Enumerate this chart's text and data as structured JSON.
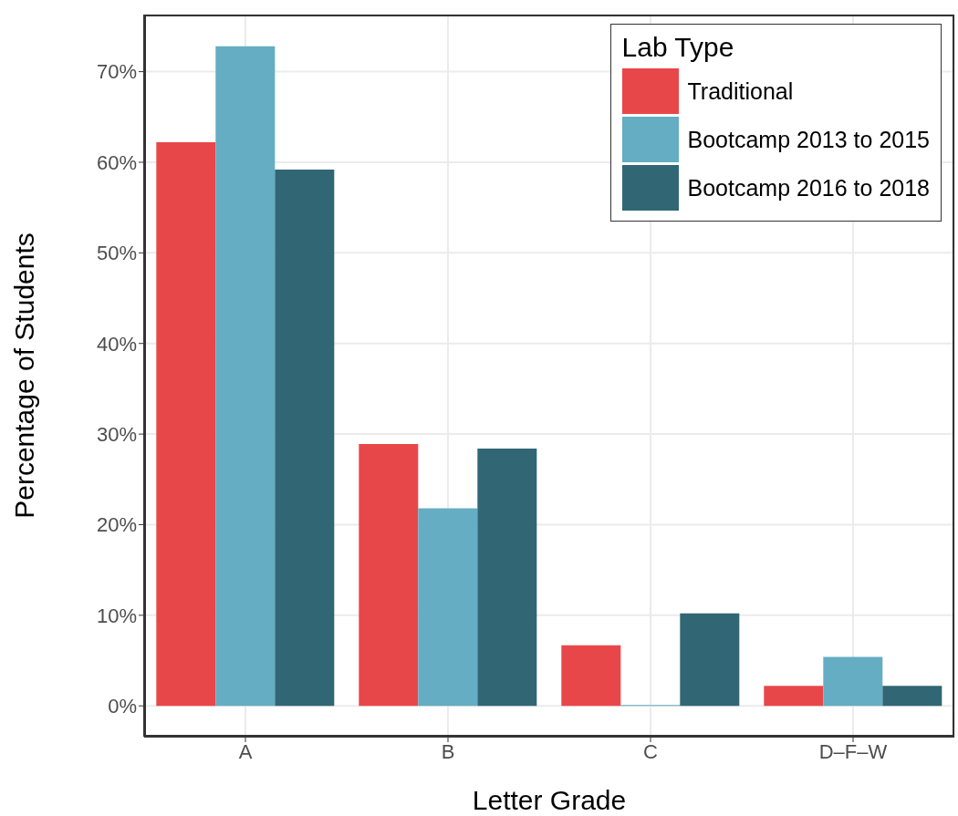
{
  "chart_data": {
    "type": "bar",
    "xlabel": "Letter Grade",
    "ylabel": "Percentage of Students",
    "legend_title": "Lab Type",
    "categories": [
      "A",
      "B",
      "C",
      "D–F–W"
    ],
    "series": [
      {
        "name": "Traditional",
        "color": "#e8474a",
        "values": [
          62.2,
          28.9,
          6.7,
          2.2
        ]
      },
      {
        "name": "Bootcamp 2013 to 2015",
        "color": "#64adc3",
        "values": [
          72.8,
          21.8,
          0.1,
          5.4
        ]
      },
      {
        "name": "Bootcamp 2016 to 2018",
        "color": "#316674",
        "values": [
          59.2,
          28.4,
          10.2,
          2.2
        ]
      }
    ],
    "ylim": [
      -3.4,
      76.3
    ],
    "yticks": [
      {
        "value": 0,
        "label": "0%"
      },
      {
        "value": 10,
        "label": "10%"
      },
      {
        "value": 20,
        "label": "20%"
      },
      {
        "value": 30,
        "label": "30%"
      },
      {
        "value": 40,
        "label": "40%"
      },
      {
        "value": 50,
        "label": "50%"
      },
      {
        "value": 60,
        "label": "60%"
      },
      {
        "value": 70,
        "label": "70%"
      }
    ],
    "grid": true,
    "legend": "top right"
  }
}
